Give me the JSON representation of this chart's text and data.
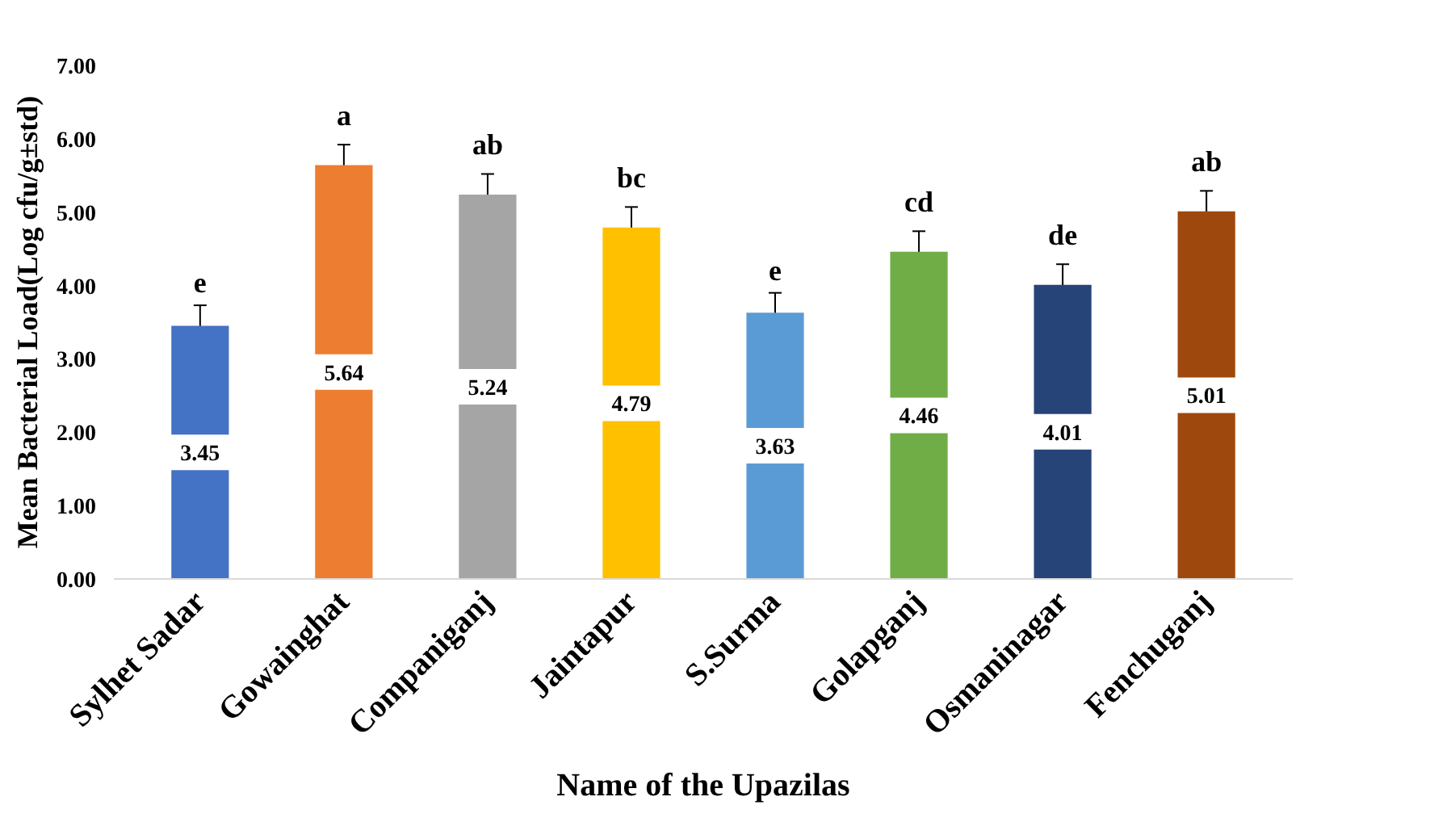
{
  "chart_data": {
    "type": "bar",
    "xlabel": "Name of the Upazilas",
    "ylabel": "Mean Bacterial Load(Log cfu/g±std)",
    "categories": [
      "Sylhet Sadar",
      "Gowainghat",
      "Companiganj",
      "Jaintapur",
      "S.Surma",
      "Golapganj",
      "Osmaninagar",
      "Fenchuganj"
    ],
    "values": [
      3.45,
      5.64,
      5.24,
      4.79,
      3.63,
      4.46,
      4.01,
      5.01
    ],
    "colors": [
      "#4472c4",
      "#ed7d31",
      "#a5a5a5",
      "#ffc000",
      "#5b9bd5",
      "#70ad47",
      "#264478",
      "#9e480e"
    ],
    "errors": [
      0.28,
      0.28,
      0.28,
      0.28,
      0.27,
      0.28,
      0.28,
      0.28
    ],
    "data_labels": true,
    "ylim": [
      0,
      7
    ],
    "yticks": [
      {
        "value": 0,
        "label": "0.00"
      },
      {
        "value": 1,
        "label": "1.00"
      },
      {
        "value": 2,
        "label": "2.00"
      },
      {
        "value": 3,
        "label": "3.00"
      },
      {
        "value": 4,
        "label": "4.00"
      },
      {
        "value": 5,
        "label": "5.00"
      },
      {
        "value": 6,
        "label": "6.00"
      },
      {
        "value": 7,
        "label": "7.00"
      }
    ],
    "grid": false,
    "annotations": [
      "e",
      "a",
      "ab",
      "bc",
      "e",
      "cd",
      "de",
      "ab"
    ]
  }
}
